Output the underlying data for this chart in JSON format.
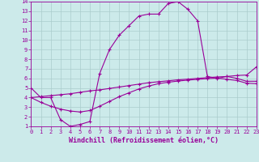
{
  "xlabel": "Windchill (Refroidissement éolien,°C)",
  "xlim": [
    0,
    23
  ],
  "ylim": [
    1,
    14
  ],
  "xticks": [
    0,
    1,
    2,
    3,
    4,
    5,
    6,
    7,
    8,
    9,
    10,
    11,
    12,
    13,
    14,
    15,
    16,
    17,
    18,
    19,
    20,
    21,
    22,
    23
  ],
  "yticks": [
    1,
    2,
    3,
    4,
    5,
    6,
    7,
    8,
    9,
    10,
    11,
    12,
    13,
    14
  ],
  "bg_color": "#cceaea",
  "line_color": "#990099",
  "grid_color": "#aacccc",
  "curve1_x": [
    0,
    1,
    2,
    3,
    4,
    5,
    6,
    7,
    8,
    9,
    10,
    11,
    12,
    13,
    14,
    15,
    16,
    17,
    18,
    19,
    20,
    21,
    22,
    23
  ],
  "curve1_y": [
    5.0,
    4.0,
    4.0,
    1.7,
    1.0,
    1.2,
    1.5,
    6.5,
    9.0,
    10.5,
    11.5,
    12.5,
    12.7,
    12.7,
    13.8,
    14.0,
    13.2,
    12.0,
    6.2,
    6.0,
    6.2,
    6.0,
    5.7,
    5.7
  ],
  "curve2_x": [
    0,
    1,
    2,
    3,
    4,
    5,
    6,
    7,
    8,
    9,
    10,
    11,
    12,
    13,
    14,
    15,
    16,
    17,
    18,
    19,
    20,
    21,
    22,
    23
  ],
  "curve2_y": [
    4.0,
    4.1,
    4.2,
    4.3,
    4.4,
    4.55,
    4.7,
    4.8,
    4.95,
    5.1,
    5.25,
    5.4,
    5.55,
    5.65,
    5.75,
    5.85,
    5.92,
    6.0,
    6.08,
    6.15,
    6.2,
    6.3,
    6.35,
    7.2
  ],
  "curve3_x": [
    0,
    1,
    2,
    3,
    4,
    5,
    6,
    7,
    8,
    9,
    10,
    11,
    12,
    13,
    14,
    15,
    16,
    17,
    18,
    19,
    20,
    21,
    22,
    23
  ],
  "curve3_y": [
    4.0,
    3.5,
    3.1,
    2.8,
    2.6,
    2.5,
    2.65,
    3.1,
    3.6,
    4.1,
    4.5,
    4.9,
    5.2,
    5.45,
    5.6,
    5.72,
    5.82,
    5.9,
    5.97,
    6.03,
    5.9,
    5.78,
    5.5,
    5.45
  ],
  "marker": "+",
  "markersize": 3,
  "linewidth": 0.8,
  "font_family": "monospace",
  "tick_fontsize": 5,
  "label_fontsize": 6
}
